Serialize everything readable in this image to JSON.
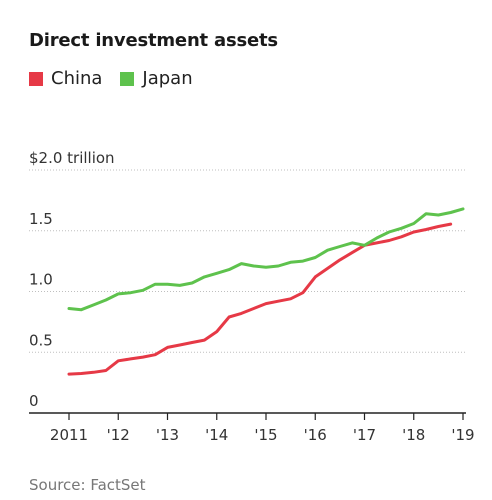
{
  "chart_data": {
    "type": "line",
    "title": "Direct investment assets",
    "source": "Source: FactSet",
    "ylabel": "",
    "xlabel": "",
    "y_unit_label": "$2.0 trillion",
    "ylim": [
      0,
      2.0
    ],
    "xlim": [
      2011,
      2019
    ],
    "y_ticks": [
      {
        "value": 0,
        "label": "0"
      },
      {
        "value": 0.5,
        "label": "0.5"
      },
      {
        "value": 1.0,
        "label": "1.0"
      },
      {
        "value": 1.5,
        "label": "1.5"
      },
      {
        "value": 2.0,
        "label": "$2.0 trillion"
      }
    ],
    "x_ticks": [
      {
        "value": 2011,
        "label": "2011"
      },
      {
        "value": 2012,
        "label": "'12"
      },
      {
        "value": 2013,
        "label": "'13"
      },
      {
        "value": 2014,
        "label": "'14"
      },
      {
        "value": 2015,
        "label": "'15"
      },
      {
        "value": 2016,
        "label": "'16"
      },
      {
        "value": 2017,
        "label": "'17"
      },
      {
        "value": 2018,
        "label": "'18"
      },
      {
        "value": 2019,
        "label": "'19"
      }
    ],
    "grid": "horizontal",
    "legend_position": "top-left",
    "series": [
      {
        "name": "China",
        "color": "#e63946",
        "x": [
          2011.0,
          2011.25,
          2011.5,
          2011.75,
          2012.0,
          2012.25,
          2012.5,
          2012.75,
          2013.0,
          2013.25,
          2013.5,
          2013.75,
          2014.0,
          2014.25,
          2014.5,
          2014.75,
          2015.0,
          2015.25,
          2015.5,
          2015.75,
          2016.0,
          2016.25,
          2016.5,
          2016.75,
          2017.0,
          2017.25,
          2017.5,
          2017.75,
          2018.0,
          2018.25,
          2018.5,
          2018.75
        ],
        "values": [
          0.32,
          0.325,
          0.335,
          0.35,
          0.43,
          0.445,
          0.46,
          0.48,
          0.54,
          0.56,
          0.58,
          0.6,
          0.67,
          0.79,
          0.82,
          0.86,
          0.9,
          0.92,
          0.94,
          0.99,
          1.12,
          1.19,
          1.26,
          1.32,
          1.38,
          1.4,
          1.42,
          1.45,
          1.49,
          1.51,
          1.535,
          1.555
        ]
      },
      {
        "name": "Japan",
        "color": "#5ec24d",
        "x": [
          2011.0,
          2011.25,
          2011.5,
          2011.75,
          2012.0,
          2012.25,
          2012.5,
          2012.75,
          2013.0,
          2013.25,
          2013.5,
          2013.75,
          2014.0,
          2014.25,
          2014.5,
          2014.75,
          2015.0,
          2015.25,
          2015.5,
          2015.75,
          2016.0,
          2016.25,
          2016.5,
          2016.75,
          2017.0,
          2017.25,
          2017.5,
          2017.75,
          2018.0,
          2018.25,
          2018.5,
          2018.75,
          2019.0
        ],
        "values": [
          0.86,
          0.85,
          0.89,
          0.93,
          0.98,
          0.99,
          1.01,
          1.06,
          1.06,
          1.05,
          1.07,
          1.12,
          1.15,
          1.18,
          1.23,
          1.21,
          1.2,
          1.21,
          1.24,
          1.25,
          1.28,
          1.34,
          1.37,
          1.4,
          1.38,
          1.44,
          1.49,
          1.52,
          1.56,
          1.64,
          1.63,
          1.65,
          1.68
        ]
      }
    ]
  }
}
